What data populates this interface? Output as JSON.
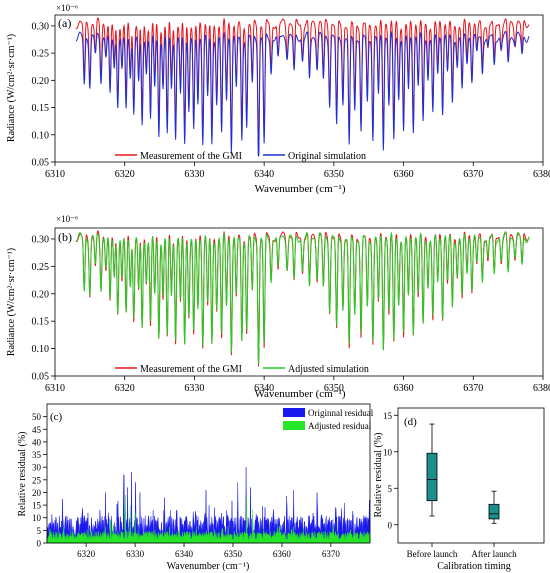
{
  "chart_data": [
    {
      "type": "line",
      "panel_label": "(a)",
      "scale_label": "×10⁻⁶",
      "xlabel": "Wavenumber (cm⁻¹)",
      "ylabel": "Radiance (W/cm²·sr·cm⁻¹)",
      "xlim": [
        6310,
        6380
      ],
      "ylim": [
        0.05,
        0.32
      ],
      "xticks": [
        6310,
        6320,
        6330,
        6340,
        6350,
        6360,
        6370,
        6380
      ],
      "yticks": [
        0.05,
        0.1,
        0.15,
        0.2,
        0.25,
        0.3
      ],
      "ytick_labels": [
        "0.05",
        "0.10",
        "0.15",
        "0.20",
        "0.25",
        "0.30"
      ],
      "x_range": [
        6313,
        6378
      ],
      "series": [
        {
          "name": "Measurement of the GMI",
          "color": "#e8141c",
          "baseline": 0.305,
          "depth_scale": 1.0
        },
        {
          "name": "Original simulation",
          "color": "#1f2fd6",
          "baseline": 0.28,
          "depth_scale": 1.12
        }
      ],
      "lines": [
        {
          "x": 6314.2,
          "min": 0.2
        },
        {
          "x": 6315.0,
          "min": 0.2
        },
        {
          "x": 6315.8,
          "min": 0.25
        },
        {
          "x": 6316.6,
          "min": 0.21
        },
        {
          "x": 6317.3,
          "min": 0.25
        },
        {
          "x": 6317.9,
          "min": 0.18
        },
        {
          "x": 6318.5,
          "min": 0.23
        },
        {
          "x": 6319.0,
          "min": 0.17
        },
        {
          "x": 6319.6,
          "min": 0.22
        },
        {
          "x": 6320.2,
          "min": 0.16
        },
        {
          "x": 6320.8,
          "min": 0.22
        },
        {
          "x": 6321.3,
          "min": 0.15
        },
        {
          "x": 6322.0,
          "min": 0.2
        },
        {
          "x": 6322.5,
          "min": 0.14
        },
        {
          "x": 6323.1,
          "min": 0.22
        },
        {
          "x": 6323.7,
          "min": 0.14
        },
        {
          "x": 6324.3,
          "min": 0.2
        },
        {
          "x": 6324.9,
          "min": 0.12
        },
        {
          "x": 6325.5,
          "min": 0.19
        },
        {
          "x": 6326.1,
          "min": 0.12
        },
        {
          "x": 6326.7,
          "min": 0.2
        },
        {
          "x": 6327.3,
          "min": 0.11
        },
        {
          "x": 6328.0,
          "min": 0.18
        },
        {
          "x": 6328.6,
          "min": 0.11
        },
        {
          "x": 6329.2,
          "min": 0.16
        },
        {
          "x": 6329.9,
          "min": 0.12
        },
        {
          "x": 6330.5,
          "min": 0.17
        },
        {
          "x": 6331.2,
          "min": 0.11
        },
        {
          "x": 6331.9,
          "min": 0.18
        },
        {
          "x": 6332.5,
          "min": 0.1
        },
        {
          "x": 6333.2,
          "min": 0.17
        },
        {
          "x": 6333.9,
          "min": 0.12
        },
        {
          "x": 6334.6,
          "min": 0.18
        },
        {
          "x": 6335.3,
          "min": 0.095
        },
        {
          "x": 6336.0,
          "min": 0.19
        },
        {
          "x": 6336.8,
          "min": 0.11
        },
        {
          "x": 6337.5,
          "min": 0.13
        },
        {
          "x": 6338.3,
          "min": 0.2
        },
        {
          "x": 6339.2,
          "min": 0.07
        },
        {
          "x": 6340.0,
          "min": 0.1
        },
        {
          "x": 6341.0,
          "min": 0.22
        },
        {
          "x": 6342.0,
          "min": 0.24
        },
        {
          "x": 6343.3,
          "min": 0.25
        },
        {
          "x": 6344.3,
          "min": 0.22
        },
        {
          "x": 6345.5,
          "min": 0.24
        },
        {
          "x": 6346.5,
          "min": 0.21
        },
        {
          "x": 6347.6,
          "min": 0.23
        },
        {
          "x": 6348.5,
          "min": 0.21
        },
        {
          "x": 6349.4,
          "min": 0.17
        },
        {
          "x": 6350.4,
          "min": 0.13
        },
        {
          "x": 6351.3,
          "min": 0.17
        },
        {
          "x": 6352.2,
          "min": 0.095
        },
        {
          "x": 6353.0,
          "min": 0.16
        },
        {
          "x": 6353.9,
          "min": 0.12
        },
        {
          "x": 6354.8,
          "min": 0.17
        },
        {
          "x": 6355.6,
          "min": 0.11
        },
        {
          "x": 6356.4,
          "min": 0.18
        },
        {
          "x": 6357.1,
          "min": 0.1
        },
        {
          "x": 6357.9,
          "min": 0.17
        },
        {
          "x": 6358.6,
          "min": 0.11
        },
        {
          "x": 6359.3,
          "min": 0.18
        },
        {
          "x": 6360.0,
          "min": 0.12
        },
        {
          "x": 6360.7,
          "min": 0.19
        },
        {
          "x": 6361.4,
          "min": 0.13
        },
        {
          "x": 6362.1,
          "min": 0.2
        },
        {
          "x": 6362.8,
          "min": 0.14
        },
        {
          "x": 6363.5,
          "min": 0.21
        },
        {
          "x": 6364.2,
          "min": 0.15
        },
        {
          "x": 6364.9,
          "min": 0.22
        },
        {
          "x": 6365.6,
          "min": 0.16
        },
        {
          "x": 6366.3,
          "min": 0.22
        },
        {
          "x": 6367.0,
          "min": 0.17
        },
        {
          "x": 6367.7,
          "min": 0.23
        },
        {
          "x": 6368.4,
          "min": 0.19
        },
        {
          "x": 6369.1,
          "min": 0.24
        },
        {
          "x": 6369.8,
          "min": 0.21
        },
        {
          "x": 6370.5,
          "min": 0.25
        },
        {
          "x": 6371.3,
          "min": 0.22
        },
        {
          "x": 6372.1,
          "min": 0.26
        },
        {
          "x": 6373.0,
          "min": 0.23
        },
        {
          "x": 6374.0,
          "min": 0.26
        },
        {
          "x": 6375.0,
          "min": 0.24
        },
        {
          "x": 6376.0,
          "min": 0.27
        },
        {
          "x": 6377.0,
          "min": 0.25
        }
      ]
    },
    {
      "type": "line",
      "panel_label": "(b)",
      "scale_label": "×10⁻⁶",
      "xlabel": "Wavenumber (cm⁻¹)",
      "ylabel": "Radiance (W/cm²·sr·cm⁻¹)",
      "xlim": [
        6310,
        6380
      ],
      "ylim": [
        0.05,
        0.32
      ],
      "xticks": [
        6310,
        6320,
        6330,
        6340,
        6350,
        6360,
        6370,
        6380
      ],
      "yticks": [
        0.05,
        0.1,
        0.15,
        0.2,
        0.25,
        0.3
      ],
      "ytick_labels": [
        "0.05",
        "0.10",
        "0.15",
        "0.20",
        "0.25",
        "0.30"
      ],
      "x_range": [
        6313,
        6378
      ],
      "series": [
        {
          "name": "Measurement of the GMI",
          "color": "#e8141c",
          "baseline": 0.305,
          "depth_scale": 1.0
        },
        {
          "name": "Adjusted simulation",
          "color": "#22cc22",
          "baseline": 0.303,
          "depth_scale": 0.98
        }
      ],
      "same_lines_as_panel": "(a)"
    },
    {
      "type": "area",
      "panel_label": "(c)",
      "xlabel": "Wavenumber (cm⁻¹)",
      "ylabel": "Relative residual (%)",
      "xlim": [
        6312,
        6378
      ],
      "ylim": [
        0,
        55
      ],
      "xticks": [
        6320,
        6330,
        6340,
        6350,
        6360,
        6370
      ],
      "yticks": [
        0,
        5,
        10,
        15,
        20,
        25,
        30,
        35,
        40,
        45,
        50
      ],
      "series": [
        {
          "name": "Originnal residual",
          "color": "#1a1aee",
          "typical": 7,
          "peaks": [
            {
              "x": 6327.7,
              "y": 27
            },
            {
              "x": 6328.5,
              "y": 22
            },
            {
              "x": 6329.3,
              "y": 28
            },
            {
              "x": 6330.1,
              "y": 24
            },
            {
              "x": 6331.0,
              "y": 20
            },
            {
              "x": 6324.0,
              "y": 20
            },
            {
              "x": 6344.5,
              "y": 21
            },
            {
              "x": 6352.7,
              "y": 30
            },
            {
              "x": 6351.0,
              "y": 24
            },
            {
              "x": 6353.6,
              "y": 22
            },
            {
              "x": 6362.4,
              "y": 21
            },
            {
              "x": 6367.2,
              "y": 20
            },
            {
              "x": 6371.0,
              "y": 14
            },
            {
              "x": 6336.0,
              "y": 18
            },
            {
              "x": 6338.5,
              "y": 13
            }
          ]
        },
        {
          "name": "Adjusted residual",
          "color": "#27e627",
          "typical": 3,
          "peaks": [
            {
              "x": 6328.0,
              "y": 19
            },
            {
              "x": 6329.0,
              "y": 15
            },
            {
              "x": 6330.0,
              "y": 12
            },
            {
              "x": 6352.8,
              "y": 18
            },
            {
              "x": 6354.0,
              "y": 13
            },
            {
              "x": 6325.0,
              "y": 9
            }
          ]
        }
      ]
    },
    {
      "type": "box",
      "panel_label": "(d)",
      "xlabel": "Calibration timing",
      "ylabel": "Relative residual (%)",
      "ylim": [
        -2.5,
        16
      ],
      "yticks": [
        0,
        5,
        10,
        15
      ],
      "categories": [
        "Before launch",
        "After launch"
      ],
      "box_color": "#1a8f8c",
      "boxes": [
        {
          "category": "Before launch",
          "whisker_low": 1.2,
          "q1": 3.3,
          "median": 6.2,
          "q3": 9.8,
          "whisker_high": 13.8
        },
        {
          "category": "After launch",
          "whisker_low": 0.2,
          "q1": 0.8,
          "median": 1.5,
          "q3": 2.8,
          "whisker_high": 4.6
        }
      ]
    }
  ]
}
